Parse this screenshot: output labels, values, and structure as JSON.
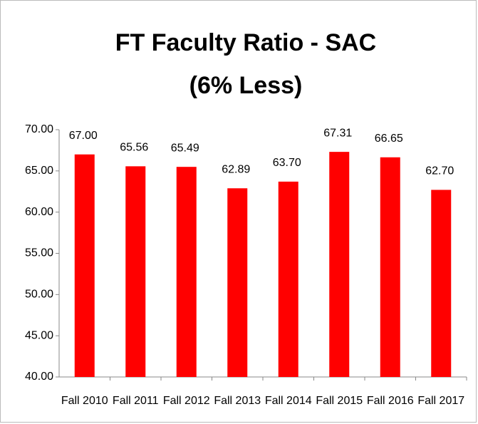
{
  "chart_data": {
    "type": "bar",
    "title": "FT Faculty Ratio - SAC",
    "subtitle": "(6% Less)",
    "categories": [
      "Fall 2010",
      "Fall 2011",
      "Fall 2012",
      "Fall 2013",
      "Fall 2014",
      "Fall 2015",
      "Fall 2016",
      "Fall 2017"
    ],
    "values": [
      67.0,
      65.56,
      65.49,
      62.89,
      63.7,
      67.31,
      66.65,
      62.7
    ],
    "value_labels": [
      "67.00",
      "65.56",
      "65.49",
      "62.89",
      "63.70",
      "67.31",
      "66.65",
      "62.70"
    ],
    "color": "#ff0000",
    "ylim": [
      40,
      70
    ],
    "yticks": [
      {
        "value": 40,
        "label": "40.00"
      },
      {
        "value": 45,
        "label": "45.00"
      },
      {
        "value": 50,
        "label": "50.00"
      },
      {
        "value": 55,
        "label": "55.00"
      },
      {
        "value": 60,
        "label": "60.00"
      },
      {
        "value": 65,
        "label": "65.00"
      },
      {
        "value": 70,
        "label": "70.00"
      }
    ],
    "grid": false
  }
}
